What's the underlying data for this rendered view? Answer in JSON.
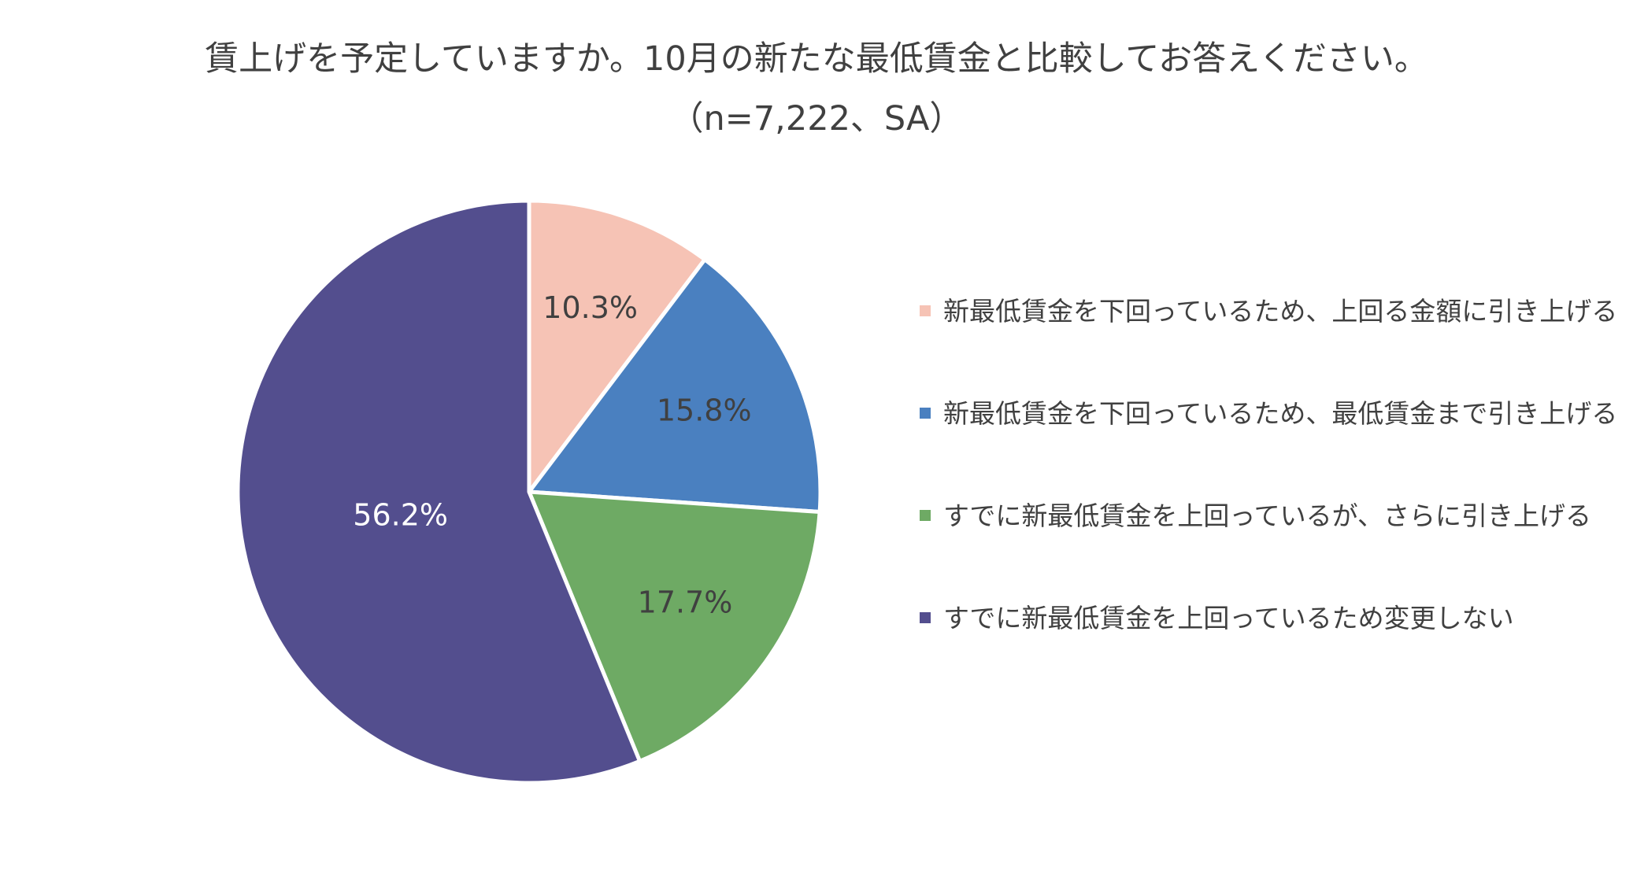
{
  "chart_data": {
    "type": "pie",
    "title": "賃上げを予定していますか。10月の新たな最低賃金と比較してお答えください。",
    "subtitle": "（n=7,222、SA）",
    "legend_position": "right",
    "slices": [
      {
        "label": "新最低賃金を下回っているため、上回る金額に引き上げる",
        "value": 10.3,
        "data_label": "10.3%",
        "color": "#F6C3B5",
        "label_color": "#404040"
      },
      {
        "label": "新最低賃金を下回っているため、最低賃金まで引き上げる",
        "value": 15.8,
        "data_label": "15.8%",
        "color": "#4A80C0",
        "label_color": "#404040"
      },
      {
        "label": "すでに新最低賃金を上回っているが、さらに引き上げる",
        "value": 17.7,
        "data_label": "17.7%",
        "color": "#6EAA64",
        "label_color": "#404040"
      },
      {
        "label": "すでに新最低賃金を上回っているため変更しない",
        "value": 56.2,
        "data_label": "56.2%",
        "color": "#534E8E",
        "label_color": "#FFFFFF"
      }
    ]
  }
}
